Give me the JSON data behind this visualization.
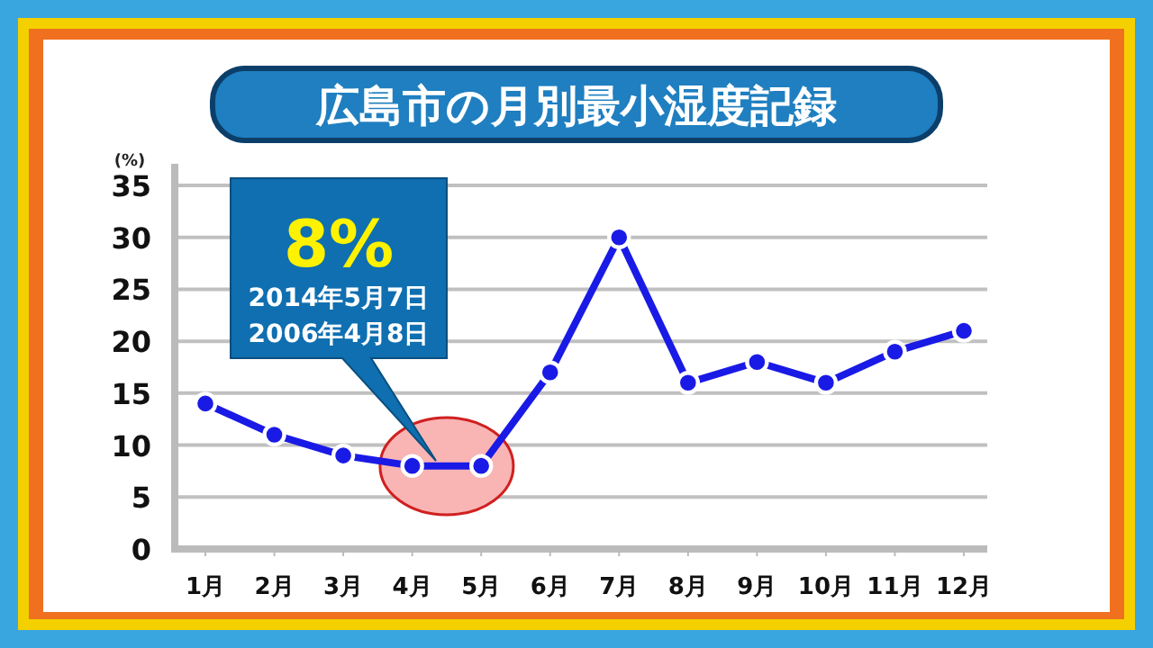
{
  "chart_data": {
    "type": "line",
    "title": "広島市の月別最小湿度記録",
    "ylabel": "(%)",
    "categories": [
      "1月",
      "2月",
      "3月",
      "4月",
      "5月",
      "6月",
      "7月",
      "8月",
      "9月",
      "10月",
      "11月",
      "12月"
    ],
    "series": [
      {
        "color": "#1a1ae6",
        "values": [
          14,
          11,
          9,
          8,
          8,
          17,
          30,
          16,
          18,
          16,
          19,
          21
        ]
      }
    ],
    "ylim": [
      0,
      35
    ],
    "yticks": [
      0,
      5,
      10,
      15,
      20,
      25,
      30,
      35
    ],
    "grid": "y",
    "marker": "circle",
    "annotations": [
      "8%",
      "2014年5月7日",
      "2006年4月8日"
    ]
  }
}
